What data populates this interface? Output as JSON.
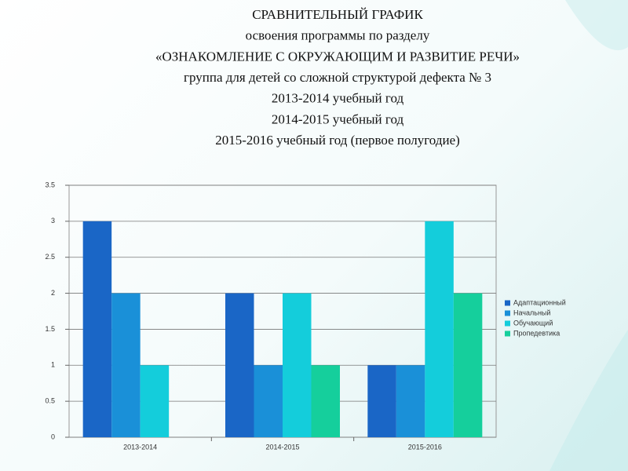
{
  "chart_data": {
    "type": "bar",
    "title_lines": [
      "СРАВНИТЕЛЬНЫЙ  ГРАФИК",
      "освоения программы по разделу",
      "«ОЗНАКОМЛЕНИЕ С  ОКРУЖАЮЩИМ И  РАЗВИТИЕ  РЕЧИ»",
      "группа для детей со сложной структурой дефекта № 3",
      "2013-2014 учебный год",
      "2014-2015 учебный год",
      "2015-2016 учебный год (первое полугодие)"
    ],
    "categories": [
      "2013-2014",
      "2014-2015",
      "2015-2016"
    ],
    "series": [
      {
        "name": "Адаптационный",
        "color": "#1a66c6",
        "values": [
          3,
          2,
          1
        ]
      },
      {
        "name": "Начальный",
        "color": "#1a90d8",
        "values": [
          2,
          1,
          1
        ]
      },
      {
        "name": "Обучающий",
        "color": "#14cddb",
        "values": [
          1,
          2,
          3
        ]
      },
      {
        "name": "Пропедевтика",
        "color": "#15cf9c",
        "values": [
          null,
          1,
          2
        ]
      }
    ],
    "ylim": [
      0,
      3.5
    ],
    "yticks": [
      0,
      0.5,
      1,
      1.5,
      2,
      2.5,
      3,
      3.5
    ],
    "grid": true,
    "legend": "right"
  }
}
